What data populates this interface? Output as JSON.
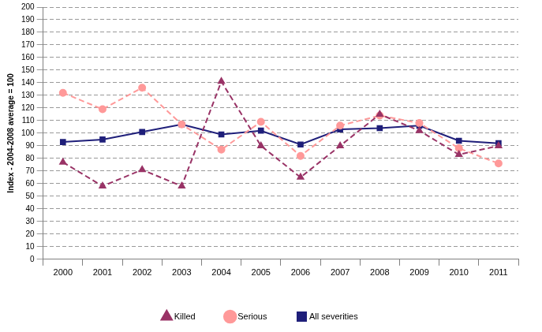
{
  "chart_data": {
    "type": "line",
    "y_label": "Index - 2004-2008 average = 100",
    "categories": [
      "2000",
      "2001",
      "2002",
      "2003",
      "2004",
      "2005",
      "2006",
      "2007",
      "2008",
      "2009",
      "2010",
      "2011"
    ],
    "series": [
      {
        "name": "Killed",
        "color": "#993366",
        "marker": "triangle",
        "line_style": "dashed",
        "values": [
          77,
          58,
          71,
          58,
          141,
          90,
          65,
          90,
          115,
          102,
          83,
          90
        ]
      },
      {
        "name": "Serious",
        "color": "#ff9999",
        "marker": "circle",
        "line_style": "dashed",
        "values": [
          132,
          119,
          136,
          107,
          87,
          109,
          82,
          106,
          114,
          108,
          88,
          76
        ]
      },
      {
        "name": "All severities",
        "color": "#1f1f7a",
        "marker": "square",
        "line_style": "solid",
        "values": [
          93,
          95,
          101,
          107,
          99,
          102,
          91,
          103,
          104,
          106,
          94,
          92
        ]
      }
    ],
    "ylim": [
      0,
      200
    ],
    "yticks": [
      0,
      10,
      20,
      30,
      40,
      50,
      60,
      70,
      80,
      90,
      100,
      110,
      120,
      130,
      140,
      150,
      160,
      170,
      180,
      190,
      200
    ],
    "grid": true,
    "legend": "bottom"
  }
}
